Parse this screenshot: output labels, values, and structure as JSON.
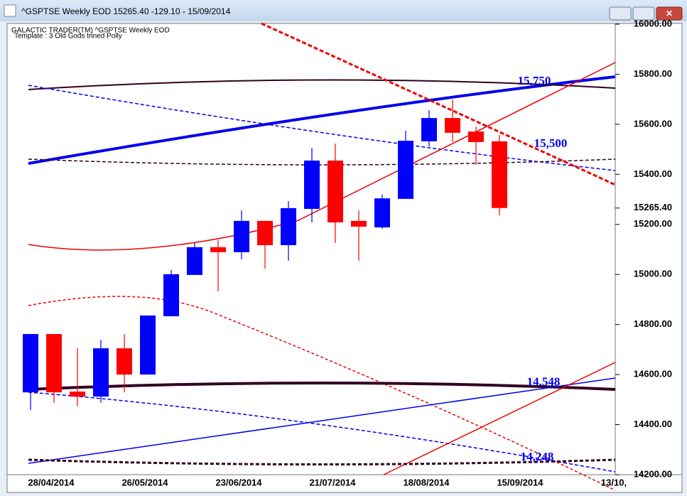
{
  "window_title": "^GSPTSE Weekly EOD  15265.40   -129.10 - 15/09/2014",
  "chart_data": {
    "type": "candlestick",
    "header": "GALACTIC TRADER(TM)     ^GSPTSE Weekly EOD",
    "subheader": "Template : 3 Old Gods trined Polly",
    "categories": [
      "28/04/2014",
      null,
      null,
      null,
      "26/05/2014",
      null,
      null,
      null,
      "23/06/2014",
      null,
      null,
      null,
      "21/07/2014",
      null,
      null,
      null,
      "18/08/2014",
      null,
      null,
      null,
      "15/09/2014",
      null,
      null,
      null,
      "13/10,"
    ],
    "open": [
      14529,
      14762,
      14532,
      14512,
      14705,
      14600,
      14833,
      14998,
      15109,
      15089,
      15214,
      15117,
      15262,
      15455,
      15214,
      15188,
      15302,
      15532,
      15625,
      15571,
      15532,
      null,
      null,
      null,
      null
    ],
    "high": [
      14762,
      14762,
      14705,
      14739,
      14762,
      14836,
      15018,
      15126,
      15137,
      15256,
      15214,
      15293,
      15506,
      15523,
      15256,
      15319,
      15574,
      15656,
      15699,
      15591,
      15557,
      null,
      null,
      null,
      null
    ],
    "low": [
      14458,
      14487,
      14473,
      14487,
      14529,
      14600,
      14833,
      14998,
      14933,
      15060,
      15023,
      15055,
      15208,
      15126,
      15055,
      15182,
      15302,
      15512,
      15529,
      15438,
      15236,
      null,
      null,
      null,
      null
    ],
    "close": [
      14762,
      14529,
      14512,
      14705,
      14600,
      14836,
      15001,
      15109,
      15089,
      15214,
      15117,
      15265,
      15455,
      15208,
      15191,
      15304,
      15534,
      15625,
      15566,
      15529,
      15265.4,
      null,
      null,
      null,
      null
    ],
    "up_color": "#0000ff",
    "down_color": "#ff0000",
    "ylim": [
      14200,
      16000
    ],
    "yticks": [
      {
        "value": 14200,
        "label": "14200.00"
      },
      {
        "value": 14400,
        "label": "14400.00"
      },
      {
        "value": 14600,
        "label": "14600.00"
      },
      {
        "value": 14800,
        "label": "14800.00"
      },
      {
        "value": 15000,
        "label": "15000.00"
      },
      {
        "value": 15200,
        "label": "15200.00"
      },
      {
        "value": 15400,
        "label": "15400.00"
      },
      {
        "value": 15600,
        "label": "15600.00"
      },
      {
        "value": 15800,
        "label": "15800.00"
      },
      {
        "value": 16000,
        "label": "16000.00"
      }
    ],
    "last_price": {
      "value": 15265.4,
      "label": "15265.40"
    },
    "annotations": [
      {
        "value": 15750,
        "label": "15,750"
      },
      {
        "value": 15500,
        "label": "15,500"
      },
      {
        "value": 14548,
        "label": "14,548"
      },
      {
        "value": 14248,
        "label": "14,248"
      }
    ]
  }
}
